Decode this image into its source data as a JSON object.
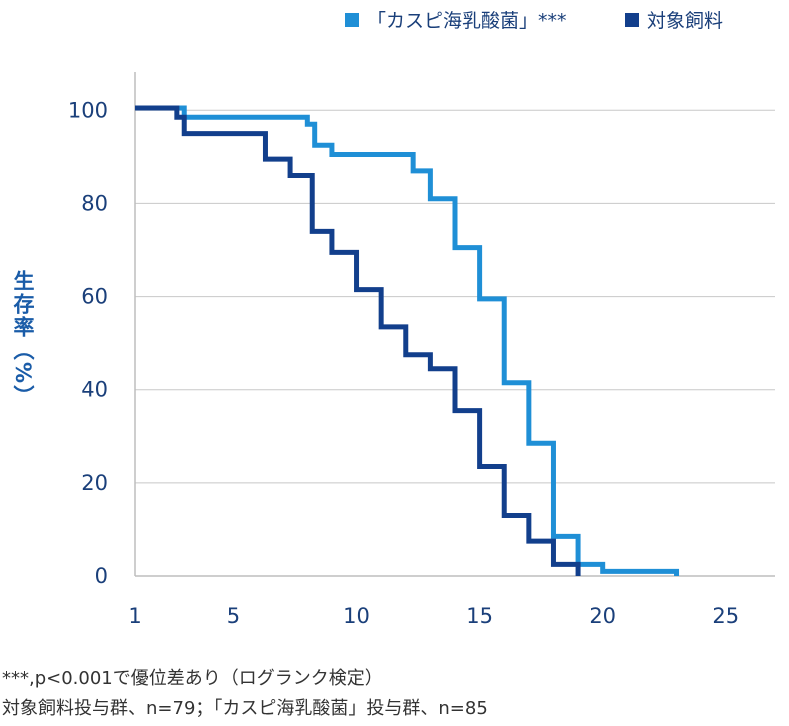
{
  "chart_data": {
    "type": "line",
    "step": true,
    "title": "",
    "xlabel": "",
    "ylabel": "生存率（%）",
    "xlim": [
      1,
      27
    ],
    "ylim": [
      0,
      105
    ],
    "x_ticks": [
      1,
      5,
      10,
      15,
      20,
      25
    ],
    "y_ticks": [
      0,
      20,
      40,
      60,
      80,
      100
    ],
    "grid": "horizontal",
    "legend_position": "top-right",
    "series": [
      {
        "name": "「カスピ海乳酸菌」***",
        "color": "#1f8fd6",
        "points": [
          [
            1,
            100.5
          ],
          [
            3,
            98.5
          ],
          [
            7,
            98.5
          ],
          [
            8,
            97
          ],
          [
            8.3,
            92.5
          ],
          [
            9,
            90.5
          ],
          [
            12,
            90.5
          ],
          [
            12.3,
            87
          ],
          [
            13,
            81
          ],
          [
            14,
            70.5
          ],
          [
            15,
            59.5
          ],
          [
            16,
            41.5
          ],
          [
            17,
            28.5
          ],
          [
            18,
            8.5
          ],
          [
            19,
            2.5
          ],
          [
            20,
            1
          ],
          [
            23,
            1
          ],
          [
            23,
            0
          ]
        ]
      },
      {
        "name": "対象飼料",
        "color": "#123f8c",
        "points": [
          [
            1,
            100.5
          ],
          [
            2.7,
            98.5
          ],
          [
            3,
            95
          ],
          [
            6,
            95
          ],
          [
            6.3,
            89.5
          ],
          [
            7.3,
            86
          ],
          [
            8.2,
            74
          ],
          [
            9,
            69.5
          ],
          [
            10,
            61.5
          ],
          [
            11,
            53.5
          ],
          [
            12,
            47.5
          ],
          [
            13,
            44.5
          ],
          [
            14,
            35.5
          ],
          [
            15,
            23.5
          ],
          [
            16,
            13
          ],
          [
            17,
            7.5
          ],
          [
            18,
            2.5
          ],
          [
            19,
            2.5
          ],
          [
            19,
            0
          ]
        ]
      }
    ]
  },
  "footnotes": {
    "line1": "***,p<0.001で優位差あり（ログランク検定）",
    "line2": "対象飼料投与群、n=79；「カスピ海乳酸菌」投与群、n=85"
  }
}
